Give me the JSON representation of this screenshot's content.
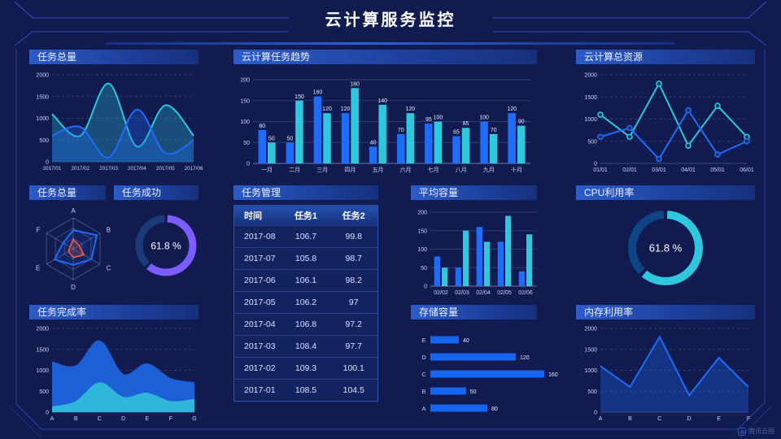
{
  "page": {
    "title": "云计算服务监控",
    "watermark": "腾讯云图"
  },
  "panels": {
    "tasks_total_line": {
      "title": "任务总量"
    },
    "cloud_task_trend": {
      "title": "云计算任务趋势"
    },
    "cloud_total_resources": {
      "title": "云计算总资源"
    },
    "tasks_total_radar": {
      "title": "任务总量"
    },
    "task_success": {
      "title": "任务成功"
    },
    "task_management": {
      "title": "任务管理"
    },
    "avg_capacity": {
      "title": "平均容量"
    },
    "cpu_utilization": {
      "title": "CPU利用率"
    },
    "task_completion": {
      "title": "任务完成率"
    },
    "storage_capacity": {
      "title": "存储容量"
    },
    "memory_utilization": {
      "title": "内存利用率"
    }
  },
  "colors": {
    "blue": "#1f6cf9",
    "cyan": "#2ec7dd",
    "purple": "#7c5cff",
    "orange": "#ff5e3a"
  },
  "chart_data": [
    {
      "id": "tasks_total_line",
      "type": "line",
      "smooth": true,
      "area": true,
      "markers": false,
      "grid": "dashed",
      "x": [
        "2017/01",
        "2017/02",
        "2017/03",
        "2017/04",
        "2017/05",
        "2017/06"
      ],
      "ylim": [
        0,
        2000
      ],
      "yticks": [
        0,
        500,
        1000,
        1500,
        2000
      ],
      "series": [
        {
          "name": "series-1",
          "color": "#2ec7dd",
          "values": [
            1100,
            600,
            1800,
            350,
            1300,
            600
          ]
        },
        {
          "name": "series-2",
          "color": "#1f6cf9",
          "values": [
            600,
            800,
            100,
            1200,
            200,
            500
          ]
        }
      ]
    },
    {
      "id": "cloud_task_trend",
      "type": "bar",
      "labels": true,
      "categories": [
        "一月",
        "二月",
        "三月",
        "四月",
        "五月",
        "六月",
        "七月",
        "八月",
        "九月",
        "十月"
      ],
      "ylim": [
        0,
        200
      ],
      "yticks": [
        0,
        50,
        100,
        150,
        200
      ],
      "series": [
        {
          "name": "series-1",
          "color": "#1f6cf9",
          "values": [
            80,
            50,
            160,
            120,
            40,
            70,
            95,
            65,
            100,
            120
          ]
        },
        {
          "name": "series-2",
          "color": "#2ec7dd",
          "values": [
            50,
            150,
            120,
            180,
            140,
            120,
            100,
            85,
            70,
            90
          ]
        }
      ]
    },
    {
      "id": "cloud_total_resources",
      "type": "line",
      "smooth": false,
      "area": false,
      "markers": true,
      "grid": "dashed",
      "x": [
        "01/01",
        "02/01",
        "03/01",
        "04/01",
        "05/01",
        "06/01"
      ],
      "ylim": [
        0,
        2000
      ],
      "yticks": [
        0,
        500,
        1000,
        1500,
        2000
      ],
      "series": [
        {
          "name": "series-1",
          "color": "#2ec7dd",
          "values": [
            1100,
            600,
            1800,
            400,
            1300,
            600
          ]
        },
        {
          "name": "series-2",
          "color": "#1f6cf9",
          "values": [
            600,
            800,
            100,
            1200,
            200,
            500
          ]
        }
      ]
    },
    {
      "id": "tasks_total_radar",
      "type": "radar",
      "axes": [
        "A",
        "B",
        "C",
        "D",
        "E",
        "F"
      ],
      "max": 100,
      "series": [
        {
          "name": "blue",
          "color": "#1f6cf9",
          "values": [
            60,
            88,
            68,
            52,
            70,
            38
          ]
        },
        {
          "name": "orange",
          "color": "#ff5e3a",
          "values": [
            30,
            22,
            40,
            28,
            18,
            12
          ]
        }
      ]
    },
    {
      "id": "task_success_gauge",
      "type": "donut",
      "value": 61.8,
      "label": "61.8 %",
      "color": "#7c5cff",
      "track": "#1a3a78"
    },
    {
      "id": "task_table",
      "type": "table",
      "headers": [
        "时间",
        "任务1",
        "任务2"
      ],
      "rows": [
        [
          "2017-08",
          "106.7",
          "99.8"
        ],
        [
          "2017-07",
          "105.8",
          "98.7"
        ],
        [
          "2017-06",
          "106.1",
          "98.2"
        ],
        [
          "2017-05",
          "106.2",
          "97"
        ],
        [
          "2017-04",
          "106.8",
          "97.2"
        ],
        [
          "2017-03",
          "108.4",
          "97.7"
        ],
        [
          "2017-02",
          "109.3",
          "100.1"
        ],
        [
          "2017-01",
          "108.5",
          "104.5"
        ]
      ]
    },
    {
      "id": "avg_capacity",
      "type": "bar",
      "labels": false,
      "categories": [
        "02/02",
        "02/03",
        "02/04",
        "02/05",
        "02/06"
      ],
      "ylim": [
        0,
        200
      ],
      "yticks": [
        0,
        50,
        100,
        150,
        200
      ],
      "series": [
        {
          "name": "series-1",
          "color": "#1f6cf9",
          "values": [
            80,
            50,
            160,
            120,
            40
          ]
        },
        {
          "name": "series-2",
          "color": "#2ec7dd",
          "values": [
            50,
            150,
            120,
            190,
            140
          ]
        }
      ]
    },
    {
      "id": "storage_capacity",
      "type": "hbar",
      "color": "#1565f0",
      "xmax": 160,
      "categories": [
        "E",
        "D",
        "C",
        "B",
        "A"
      ],
      "values": [
        40,
        120,
        160,
        50,
        80
      ]
    },
    {
      "id": "cpu_gauge",
      "type": "donut",
      "value": 61.8,
      "label": "61.8 %",
      "color": "#2ec7dd",
      "track": "#0d4587"
    },
    {
      "id": "task_completion",
      "type": "area",
      "smooth": true,
      "grid": "dashed",
      "x": [
        "A",
        "B",
        "C",
        "D",
        "E",
        "F",
        "G"
      ],
      "ylim": [
        0,
        2000
      ],
      "yticks": [
        0,
        500,
        1000,
        1500,
        2000
      ],
      "series": [
        {
          "name": "total",
          "color": "#1d5fd4",
          "values": [
            1200,
            1100,
            1700,
            900,
            1150,
            800,
            700
          ],
          "fillOpacity": 1
        },
        {
          "name": "lower",
          "color": "#30b6db",
          "values": [
            120,
            250,
            700,
            350,
            450,
            250,
            300
          ],
          "fillOpacity": 1
        }
      ]
    },
    {
      "id": "memory_utilization",
      "type": "line",
      "smooth": false,
      "area": true,
      "markers": false,
      "grid": "dashed",
      "x": [
        "A",
        "B",
        "C",
        "D",
        "E",
        "F"
      ],
      "ylim": [
        0,
        2000
      ],
      "yticks": [
        0,
        500,
        1000,
        1500,
        2000
      ],
      "series": [
        {
          "name": "series-1",
          "color": "#1f6cf9",
          "values": [
            1100,
            600,
            1800,
            400,
            1300,
            600
          ]
        }
      ]
    }
  ]
}
